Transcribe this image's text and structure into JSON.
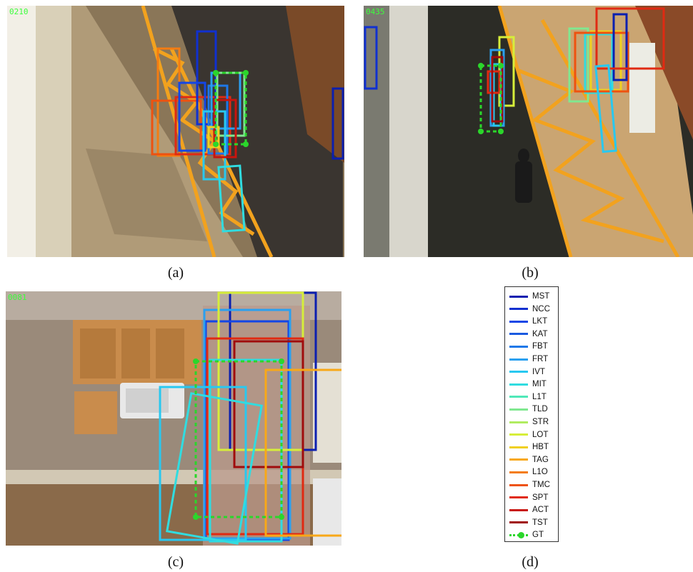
{
  "panels": {
    "a": {
      "frame_number": "0210",
      "caption": "(a)"
    },
    "b": {
      "frame_number": "0435",
      "caption": "(b)"
    },
    "c": {
      "frame_number": "0081",
      "caption": "(c)"
    },
    "d": {
      "caption": "(d)"
    }
  },
  "legend": {
    "items": [
      {
        "label": "MST",
        "color": "#0b1fb0"
      },
      {
        "label": "NCC",
        "color": "#1030d0"
      },
      {
        "label": "LKT",
        "color": "#1446e6"
      },
      {
        "label": "KAT",
        "color": "#1a5ae0"
      },
      {
        "label": "FBT",
        "color": "#1e78e8"
      },
      {
        "label": "FRT",
        "color": "#2aa0f0"
      },
      {
        "label": "IVT",
        "color": "#28c8f0"
      },
      {
        "label": "MIT",
        "color": "#30dce0"
      },
      {
        "label": "L1T",
        "color": "#50e8b8"
      },
      {
        "label": "TLD",
        "color": "#80e890"
      },
      {
        "label": "STR",
        "color": "#b0ec60"
      },
      {
        "label": "LOT",
        "color": "#d6ee3a"
      },
      {
        "label": "HBT",
        "color": "#f0d020"
      },
      {
        "label": "TAG",
        "color": "#f8a818"
      },
      {
        "label": "L1O",
        "color": "#f47c12"
      },
      {
        "label": "TMC",
        "color": "#ee5210"
      },
      {
        "label": "SPT",
        "color": "#e02a12"
      },
      {
        "label": "ACT",
        "color": "#c8140e"
      },
      {
        "label": "TST",
        "color": "#a00c0c"
      },
      {
        "label": "GT",
        "color": "#2bd62b"
      }
    ]
  }
}
